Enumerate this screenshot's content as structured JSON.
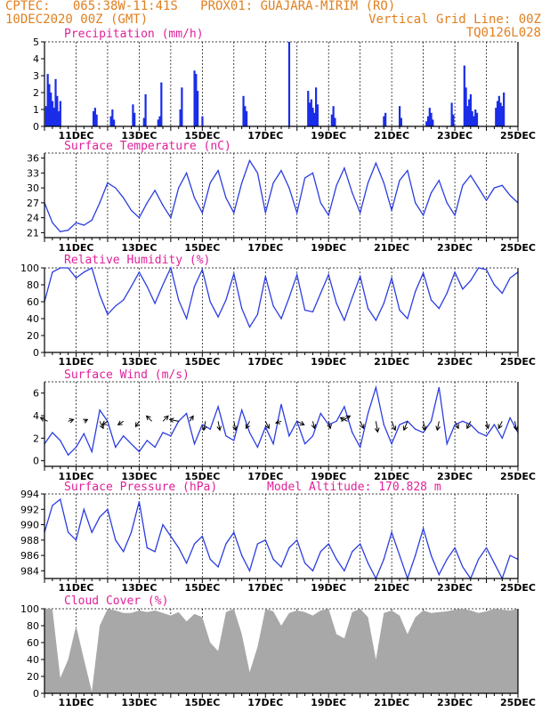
{
  "header": {
    "line1": "CPTEC:   065:38W-11:41S   PROX01: GUAJARA-MIRIM (RO)",
    "line2_left": "10DEC2020 00Z (GMT)",
    "line2_right": "Vertical Grid Line: 00Z",
    "line3_right": "TQ0126L028"
  },
  "colors": {
    "header": "#e08020",
    "title": "#e0209a",
    "line": "#2b3de0",
    "bar": "#1a2de8",
    "cloud": "#a8a8a8",
    "arrow": "#000000"
  },
  "x_axis": {
    "start": "10DEC2020 00Z",
    "end": "25DEC2020 00Z",
    "tick_labels": [
      "11DEC",
      "13DEC",
      "15DEC",
      "17DEC",
      "19DEC",
      "21DEC",
      "23DEC",
      "25DEC"
    ],
    "tick_days": [
      1,
      3,
      5,
      7,
      9,
      11,
      13,
      15
    ]
  },
  "chart_data": [
    {
      "id": "precip",
      "type": "bar",
      "title": "Precipitation (mm/h)",
      "ylim": [
        0,
        5
      ],
      "yticks": [
        0,
        1,
        2,
        3,
        4,
        5
      ],
      "x_unit": "days since 10DEC2020 00Z",
      "x": [
        0.05,
        0.1,
        0.15,
        0.2,
        0.25,
        0.3,
        0.35,
        0.4,
        0.45,
        0.5,
        1.55,
        1.6,
        1.65,
        2.1,
        2.15,
        2.2,
        2.8,
        2.85,
        3.15,
        3.2,
        3.6,
        3.65,
        3.7,
        4.3,
        4.35,
        4.75,
        4.8,
        4.85,
        5.0,
        6.3,
        6.35,
        6.4,
        7.75,
        8.35,
        8.4,
        8.45,
        8.5,
        8.55,
        8.6,
        8.65,
        9.1,
        9.15,
        9.2,
        10.75,
        10.8,
        11.25,
        11.3,
        12.1,
        12.15,
        12.2,
        12.25,
        12.3,
        12.9,
        12.95,
        13.3,
        13.35,
        13.4,
        13.45,
        13.5,
        13.55,
        13.6,
        13.65,
        13.7,
        14.3,
        14.35,
        14.4,
        14.45,
        14.5,
        14.55
      ],
      "values": [
        1.2,
        3.1,
        2.5,
        2.0,
        1.5,
        1.1,
        2.8,
        1.8,
        0.9,
        1.5,
        0.9,
        1.1,
        0.7,
        0.6,
        1.0,
        0.4,
        1.3,
        0.8,
        0.5,
        1.9,
        0.4,
        0.6,
        2.6,
        1.0,
        2.3,
        3.3,
        3.1,
        2.1,
        0.6,
        1.8,
        1.2,
        0.9,
        5.0,
        2.1,
        1.4,
        1.6,
        1.1,
        0.8,
        2.3,
        1.3,
        0.7,
        1.2,
        0.5,
        0.6,
        0.8,
        1.2,
        0.5,
        0.3,
        0.6,
        1.1,
        0.8,
        0.4,
        1.4,
        0.7,
        3.6,
        2.3,
        1.2,
        1.6,
        1.9,
        0.9,
        0.6,
        1.0,
        0.8,
        1.1,
        1.5,
        1.8,
        1.4,
        1.2,
        2.0
      ]
    },
    {
      "id": "temp",
      "type": "line",
      "title": "Surface Temperature (nC)",
      "ylim": [
        20,
        37
      ],
      "yticks": [
        21,
        24,
        27,
        30,
        33,
        36
      ],
      "x_unit": "days since 10DEC2020 00Z",
      "x": [
        0,
        0.25,
        0.5,
        0.75,
        1,
        1.25,
        1.5,
        1.75,
        2,
        2.25,
        2.5,
        2.75,
        3,
        3.25,
        3.5,
        3.75,
        4,
        4.25,
        4.5,
        4.75,
        5,
        5.25,
        5.5,
        5.75,
        6,
        6.25,
        6.5,
        6.75,
        7,
        7.25,
        7.5,
        7.75,
        8,
        8.25,
        8.5,
        8.75,
        9,
        9.25,
        9.5,
        9.75,
        10,
        10.25,
        10.5,
        10.75,
        11,
        11.25,
        11.5,
        11.75,
        12,
        12.25,
        12.5,
        12.75,
        13,
        13.25,
        13.5,
        13.75,
        14,
        14.25,
        14.5,
        14.75,
        15
      ],
      "values": [
        27,
        23,
        21.2,
        21.5,
        23,
        22.5,
        23.5,
        27,
        31,
        30,
        28,
        25.5,
        24,
        27,
        29.5,
        26.5,
        24,
        30,
        33,
        28,
        25,
        31,
        33.5,
        28,
        25,
        31,
        35.5,
        33,
        25,
        31,
        33.5,
        30,
        25,
        32,
        33,
        27,
        24.5,
        30.5,
        34,
        29,
        25,
        31,
        35,
        31,
        25.5,
        31.5,
        33.5,
        27,
        24.5,
        29,
        31.5,
        27,
        24.5,
        30.5,
        32.5,
        30,
        27.5,
        30,
        30.5,
        28.5,
        27
      ]
    },
    {
      "id": "rh",
      "type": "line",
      "title": "Relative Humidity (%)",
      "ylim": [
        0,
        100
      ],
      "yticks": [
        0,
        20,
        40,
        60,
        80,
        100
      ],
      "x_unit": "days since 10DEC2020 00Z",
      "x": [
        0,
        0.25,
        0.5,
        0.75,
        1,
        1.25,
        1.5,
        1.75,
        2,
        2.25,
        2.5,
        2.75,
        3,
        3.25,
        3.5,
        3.75,
        4,
        4.25,
        4.5,
        4.75,
        5,
        5.25,
        5.5,
        5.75,
        6,
        6.25,
        6.5,
        6.75,
        7,
        7.25,
        7.5,
        7.75,
        8,
        8.25,
        8.5,
        8.75,
        9,
        9.25,
        9.5,
        9.75,
        10,
        10.25,
        10.5,
        10.75,
        11,
        11.25,
        11.5,
        11.75,
        12,
        12.25,
        12.5,
        12.75,
        13,
        13.25,
        13.5,
        13.75,
        14,
        14.25,
        14.5,
        14.75,
        15
      ],
      "values": [
        60,
        95,
        100,
        100,
        88,
        95,
        100,
        68,
        45,
        55,
        62,
        78,
        95,
        78,
        58,
        80,
        100,
        62,
        40,
        78,
        98,
        60,
        42,
        62,
        93,
        52,
        30,
        45,
        90,
        55,
        40,
        65,
        92,
        50,
        48,
        70,
        92,
        58,
        38,
        65,
        90,
        52,
        38,
        58,
        88,
        50,
        40,
        72,
        94,
        62,
        52,
        70,
        95,
        75,
        85,
        100,
        98,
        80,
        70,
        88,
        95
      ]
    },
    {
      "id": "wind",
      "type": "line",
      "title": "Surface Wind (m/s)",
      "ylim": [
        -0.5,
        7
      ],
      "yticks": [
        0,
        2,
        4,
        6
      ],
      "x_unit": "days since 10DEC2020 00Z",
      "x": [
        0,
        0.25,
        0.5,
        0.75,
        1,
        1.25,
        1.5,
        1.75,
        2,
        2.25,
        2.5,
        2.75,
        3,
        3.25,
        3.5,
        3.75,
        4,
        4.25,
        4.5,
        4.75,
        5,
        5.25,
        5.5,
        5.75,
        6,
        6.25,
        6.5,
        6.75,
        7,
        7.25,
        7.5,
        7.75,
        8,
        8.25,
        8.5,
        8.75,
        9,
        9.25,
        9.5,
        9.75,
        10,
        10.25,
        10.5,
        10.75,
        11,
        11.25,
        11.5,
        11.75,
        12,
        12.25,
        12.5,
        12.75,
        13,
        13.25,
        13.5,
        13.75,
        14,
        14.25,
        14.5,
        14.75,
        15
      ],
      "values": [
        1.5,
        2.5,
        1.8,
        0.5,
        1.2,
        2.4,
        0.8,
        4.5,
        3.5,
        1.2,
        2.2,
        1.5,
        0.8,
        1.8,
        1.2,
        2.5,
        2.2,
        3.5,
        4.2,
        1.5,
        3.2,
        2.8,
        4.8,
        2.2,
        1.8,
        4.5,
        2.5,
        1.2,
        3.0,
        1.5,
        5.0,
        2.2,
        3.5,
        1.5,
        2.2,
        4.2,
        3.2,
        3.5,
        4.8,
        2.5,
        1.2,
        4.2,
        6.5,
        3.2,
        1.5,
        3.2,
        3.5,
        2.8,
        2.5,
        3.5,
        6.5,
        1.5,
        3.2,
        3.5,
        3.2,
        2.5,
        2.2,
        3.2,
        2.0,
        3.8,
        2.5
      ],
      "arrows": [
        {
          "day": 0.1,
          "u": -0.4,
          "v": 0.2
        },
        {
          "day": 0.75,
          "u": 0.3,
          "v": 0.1
        },
        {
          "day": 1.25,
          "u": 0.2,
          "v": 0.1
        },
        {
          "day": 1.75,
          "u": 0.2,
          "v": -0.4
        },
        {
          "day": 2.0,
          "u": -0.3,
          "v": -0.2
        },
        {
          "day": 2.5,
          "u": -0.3,
          "v": -0.2
        },
        {
          "day": 3.0,
          "u": -0.2,
          "v": -0.3
        },
        {
          "day": 3.4,
          "u": -0.3,
          "v": 0.3
        },
        {
          "day": 3.75,
          "u": 0.3,
          "v": 0.3
        },
        {
          "day": 4.25,
          "u": -0.5,
          "v": 0.1
        },
        {
          "day": 4.6,
          "u": 0.2,
          "v": 0.3
        },
        {
          "day": 5.1,
          "u": -0.1,
          "v": -0.5
        },
        {
          "day": 5.5,
          "u": 0.1,
          "v": -0.5
        },
        {
          "day": 6.0,
          "u": 0.1,
          "v": -0.5
        },
        {
          "day": 6.5,
          "u": -0.2,
          "v": -0.4
        },
        {
          "day": 7.0,
          "u": 0.2,
          "v": -0.4
        },
        {
          "day": 7.5,
          "u": -0.3,
          "v": -0.1
        },
        {
          "day": 8.0,
          "u": 0.4,
          "v": -0.2
        },
        {
          "day": 8.5,
          "u": 0.1,
          "v": -0.4
        },
        {
          "day": 9.0,
          "u": 0.1,
          "v": -0.4
        },
        {
          "day": 9.4,
          "u": 0.5,
          "v": 0.3
        },
        {
          "day": 9.6,
          "u": -0.4,
          "v": 0.2
        },
        {
          "day": 10.0,
          "u": 0.2,
          "v": -0.4
        },
        {
          "day": 10.5,
          "u": 0.1,
          "v": -0.6
        },
        {
          "day": 11.0,
          "u": 0.2,
          "v": -0.5
        },
        {
          "day": 11.5,
          "u": -0.2,
          "v": -0.5
        },
        {
          "day": 12.0,
          "u": 0.1,
          "v": -0.5
        },
        {
          "day": 12.5,
          "u": -0.1,
          "v": -0.5
        },
        {
          "day": 13.0,
          "u": 0.2,
          "v": -0.4
        },
        {
          "day": 13.5,
          "u": -0.2,
          "v": -0.4
        },
        {
          "day": 14.0,
          "u": 0.1,
          "v": -0.4
        },
        {
          "day": 14.5,
          "u": -0.2,
          "v": -0.4
        },
        {
          "day": 14.9,
          "u": 0.1,
          "v": -0.5
        }
      ]
    },
    {
      "id": "press",
      "type": "line",
      "title": "Surface Pressure (hPa)",
      "annotation": "Model Altitude: 170.828 m",
      "ylim": [
        983,
        994
      ],
      "yticks": [
        984,
        986,
        988,
        990,
        992,
        994
      ],
      "x_unit": "days since 10DEC2020 00Z",
      "x": [
        0,
        0.25,
        0.5,
        0.75,
        1,
        1.25,
        1.5,
        1.75,
        2,
        2.25,
        2.5,
        2.75,
        3,
        3.25,
        3.5,
        3.75,
        4,
        4.25,
        4.5,
        4.75,
        5,
        5.25,
        5.5,
        5.75,
        6,
        6.25,
        6.5,
        6.75,
        7,
        7.25,
        7.5,
        7.75,
        8,
        8.25,
        8.5,
        8.75,
        9,
        9.25,
        9.5,
        9.75,
        10,
        10.25,
        10.5,
        10.75,
        11,
        11.25,
        11.5,
        11.75,
        12,
        12.25,
        12.5,
        12.75,
        13,
        13.25,
        13.5,
        13.75,
        14,
        14.25,
        14.5,
        14.75,
        15
      ],
      "values": [
        989,
        992.5,
        993.3,
        989,
        988,
        992,
        989,
        991,
        992,
        988,
        986.5,
        989,
        993,
        987,
        986.5,
        990,
        988.5,
        987,
        985,
        987.5,
        988.5,
        985.5,
        984.5,
        987.5,
        989,
        986,
        984,
        987.5,
        988,
        985.5,
        984.5,
        987,
        988,
        985,
        984,
        986.5,
        987.5,
        985.5,
        984,
        986.5,
        987.5,
        985,
        983,
        985.5,
        989,
        986,
        983,
        986,
        989.5,
        986,
        983.5,
        985.5,
        987,
        984.5,
        983,
        985.5,
        987,
        985,
        983,
        986,
        985.5
      ]
    },
    {
      "id": "cloud",
      "type": "area",
      "title": "Cloud Cover (%)",
      "ylim": [
        0,
        100
      ],
      "yticks": [
        0,
        20,
        40,
        60,
        80,
        100
      ],
      "x_unit": "days since 10DEC2020 00Z",
      "x": [
        0,
        0.25,
        0.5,
        0.75,
        1,
        1.25,
        1.5,
        1.75,
        2,
        2.25,
        2.5,
        2.75,
        3,
        3.25,
        3.5,
        3.75,
        4,
        4.25,
        4.5,
        4.75,
        5,
        5.25,
        5.5,
        5.75,
        6,
        6.25,
        6.5,
        6.75,
        7,
        7.25,
        7.5,
        7.75,
        8,
        8.25,
        8.5,
        8.75,
        9,
        9.25,
        9.5,
        9.75,
        10,
        10.25,
        10.5,
        10.75,
        11,
        11.25,
        11.5,
        11.75,
        12,
        12.25,
        12.5,
        12.75,
        13,
        13.25,
        13.5,
        13.75,
        14,
        14.25,
        14.5,
        14.75,
        15
      ],
      "values": [
        100,
        100,
        18,
        40,
        80,
        40,
        2,
        80,
        100,
        98,
        95,
        95,
        98,
        96,
        98,
        95,
        92,
        96,
        85,
        94,
        90,
        60,
        50,
        96,
        100,
        70,
        25,
        55,
        100,
        97,
        80,
        95,
        98,
        96,
        92,
        98,
        100,
        70,
        65,
        96,
        100,
        90,
        40,
        95,
        98,
        92,
        70,
        90,
        98,
        95,
        96,
        97,
        99,
        100,
        98,
        95,
        97,
        100,
        99,
        98,
        100
      ]
    }
  ]
}
